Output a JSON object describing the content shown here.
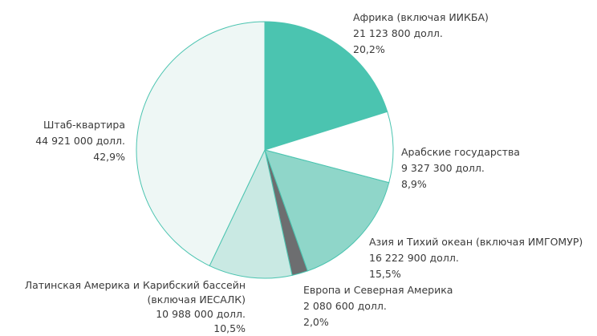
{
  "chart_data": {
    "type": "pie",
    "categories": [
      "Африка (включая ИИКБА)",
      "Арабские государства",
      "Азия и Тихий океан (включая ИМГОМУР)",
      "Европа и Северная Америка",
      "Латинская Америка и Карибский бассейн (включая ИЕСАЛК)",
      "Штаб-квартира"
    ],
    "values": [
      21123800,
      9327300,
      16222900,
      2080600,
      10988000,
      44921000
    ],
    "value_labels": [
      "21 123 800 долл.",
      "9 327 300 долл.",
      "16 222 900 долл.",
      "2 080 600 долл.",
      "10 988 000 долл.",
      "44 921 000 долл."
    ],
    "percent_labels": [
      "20,2%",
      "8,9%",
      "15,5%",
      "2,0%",
      "10,5%",
      "42,9%"
    ],
    "colors": [
      "#4bc4b0",
      "#ffffff",
      "#8fd6c9",
      "#6d6e70",
      "#c9e9e3",
      "#eef7f5"
    ]
  }
}
